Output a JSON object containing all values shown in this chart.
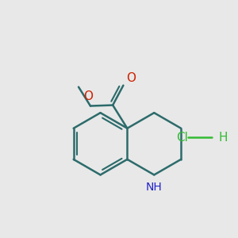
{
  "background_color": "#e8e8e8",
  "bond_color": "#2d6b6b",
  "o_color": "#cc2200",
  "n_color": "#2222cc",
  "cl_color": "#33bb33",
  "line_width": 1.8,
  "figsize": [
    3.0,
    3.0
  ],
  "dpi": 100,
  "xlim": [
    -3.8,
    3.8
  ],
  "ylim": [
    -3.2,
    3.8
  ]
}
